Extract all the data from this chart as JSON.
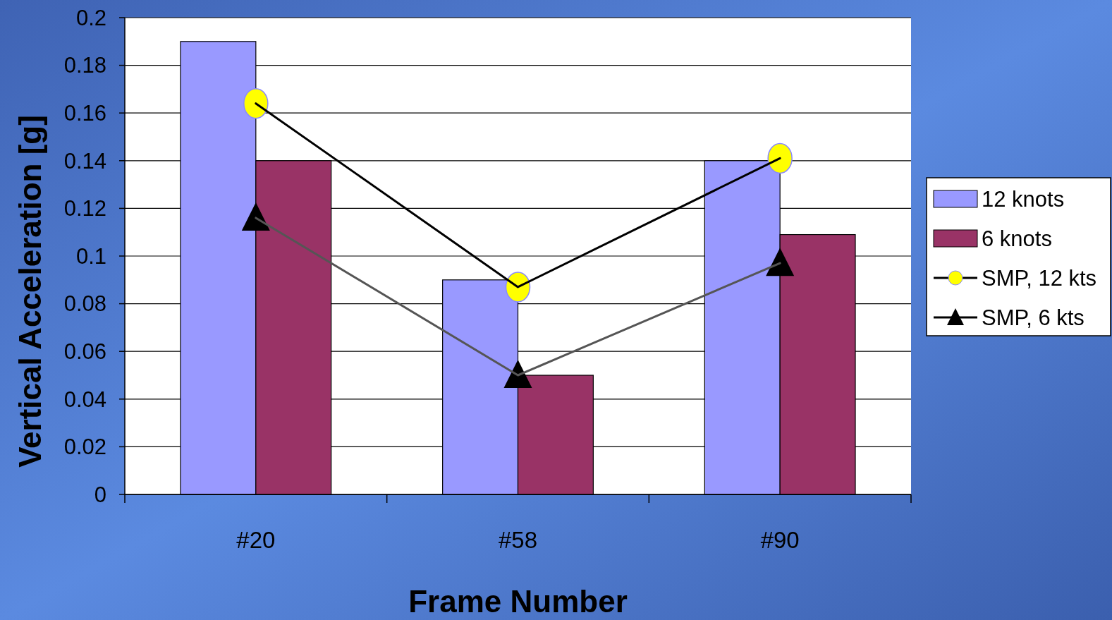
{
  "chart_data": {
    "type": "bar",
    "xlabel": "Frame Number",
    "ylabel": "Vertical Acceleration [g]",
    "categories": [
      "#20",
      "#58",
      "#90"
    ],
    "series": [
      {
        "name": "12 knots",
        "color": "#9999ff",
        "values": [
          0.19,
          0.09,
          0.14
        ]
      },
      {
        "name": "6 knots",
        "color": "#993366",
        "values": [
          0.14,
          0.05,
          0.109
        ]
      },
      {
        "name": "SMP, 12 kts",
        "type": "line",
        "color": "#ffff00",
        "marker": "circle",
        "values": [
          0.164,
          0.087,
          0.141
        ]
      },
      {
        "name": "SMP, 6 kts",
        "type": "line",
        "color": "#000000",
        "marker": "triangle",
        "values": [
          0.116,
          0.05,
          0.097
        ]
      }
    ],
    "ylim": [
      0,
      0.2
    ],
    "yticks": [
      0,
      0.02,
      0.04,
      0.06,
      0.08,
      0.1,
      0.12,
      0.14,
      0.16,
      0.18,
      0.2
    ],
    "grid": "y",
    "legend": "right"
  }
}
